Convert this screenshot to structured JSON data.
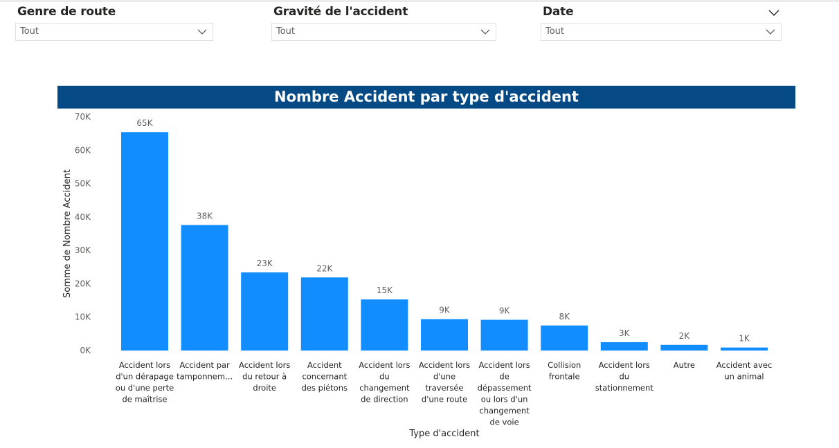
{
  "slicers": [
    {
      "title": "Genre de route",
      "value": "Tout"
    },
    {
      "title": "Gravité de l'accident",
      "value": "Tout"
    },
    {
      "title": "Date",
      "value": "Tout"
    }
  ],
  "chart_data": {
    "type": "bar",
    "title": "Nombre Accident par type d'accident",
    "xlabel": "Type d'accident",
    "ylabel": "Somme de Nombre Accident",
    "ylim": [
      0,
      70000
    ],
    "yticks": [
      "0K",
      "10K",
      "20K",
      "30K",
      "40K",
      "50K",
      "60K",
      "70K"
    ],
    "categories": [
      [
        "Accident lors",
        "d'un dérapage",
        "ou d'une perte",
        "de maîtrise"
      ],
      [
        "Accident par",
        "tamponnem..."
      ],
      [
        "Accident lors",
        "du retour à",
        "droite"
      ],
      [
        "Accident",
        "concernant",
        "des piétons"
      ],
      [
        "Accident lors",
        "du",
        "changement",
        "de direction"
      ],
      [
        "Accident lors",
        "d'une",
        "traversée",
        "d'une route"
      ],
      [
        "Accident lors",
        "de",
        "dépassement",
        "ou lors d'un",
        "changement",
        "de voie"
      ],
      [
        "Collision",
        "frontale"
      ],
      [
        "Accident lors",
        "du",
        "stationnement"
      ],
      [
        "Autre"
      ],
      [
        "Accident avec",
        "un animal"
      ]
    ],
    "values": [
      65400,
      37600,
      23400,
      21900,
      15300,
      9400,
      9200,
      7500,
      2500,
      1700,
      900
    ],
    "data_labels": [
      "65K",
      "38K",
      "23K",
      "22K",
      "15K",
      "9K",
      "9K",
      "8K",
      "3K",
      "2K",
      "1K"
    ],
    "colors": {
      "bar": "#118DFF",
      "title_band": "#064A85",
      "title_text": "#FFFFFF"
    },
    "grid": false,
    "legend": "none"
  }
}
